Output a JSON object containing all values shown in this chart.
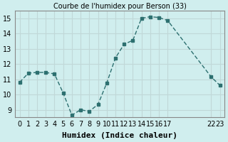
{
  "x": [
    0,
    1,
    2,
    3,
    4,
    5,
    6,
    7,
    8,
    9,
    10,
    11,
    12,
    13,
    14,
    15,
    16,
    17,
    22,
    23
  ],
  "y": [
    10.8,
    11.4,
    11.45,
    11.45,
    11.35,
    10.1,
    8.65,
    9.0,
    8.9,
    9.35,
    10.75,
    12.4,
    13.3,
    13.55,
    15.0,
    15.1,
    15.05,
    14.85,
    11.15,
    10.6
  ],
  "title": "Courbe de l'humidex pour Berson (33)",
  "xlabel": "Humidex (Indice chaleur)",
  "ylabel": "",
  "xlim": [
    -0.5,
    23.5
  ],
  "ylim": [
    8.5,
    15.5
  ],
  "yticks": [
    9,
    10,
    11,
    12,
    13,
    14,
    15
  ],
  "xticks": [
    0,
    1,
    2,
    3,
    4,
    5,
    6,
    7,
    8,
    9,
    10,
    11,
    12,
    13,
    14,
    15,
    16,
    17,
    22,
    23
  ],
  "xtick_labels": [
    "0",
    "1",
    "2",
    "3",
    "4",
    "5",
    "6",
    "7",
    "8",
    "9",
    "10",
    "11",
    "12",
    "13",
    "14",
    "15",
    "16",
    "17",
    "22",
    "23"
  ],
  "bg_color": "#d0eeee",
  "grid_color": "#c0d8d8",
  "line_color": "#2d7070",
  "marker_color": "#2d7070",
  "title_fontsize": 7,
  "label_fontsize": 8,
  "tick_fontsize": 7
}
